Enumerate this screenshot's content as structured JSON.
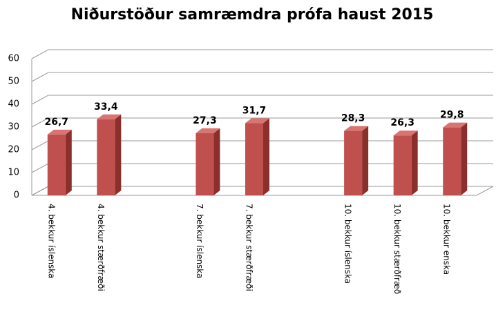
{
  "chart_data": {
    "type": "bar3d",
    "title": "Niðurstöður samræmdra prófa haust 2015",
    "categories": [
      "4. bekkur íslenska",
      "4. bekkur stærðfræði",
      null,
      "7. bekkur íslenska",
      "7. bekkur stærðfræði",
      null,
      "10. bekkur íslenska",
      "10. bekkur stærðfræð",
      "10. bekkur enska"
    ],
    "values": [
      26.7,
      33.4,
      null,
      27.3,
      31.7,
      null,
      28.3,
      26.3,
      29.8
    ],
    "value_labels": [
      "26,7",
      "33,4",
      null,
      "27,3",
      "31,7",
      null,
      "28,3",
      "26,3",
      "29,8"
    ],
    "color": "#c0504d",
    "ylim": [
      0,
      60
    ],
    "yticks": [
      0,
      10,
      20,
      30,
      40,
      50,
      60
    ],
    "grid": true
  }
}
